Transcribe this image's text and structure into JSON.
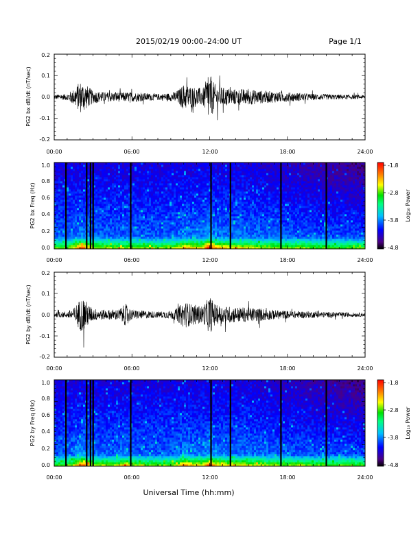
{
  "header": {
    "title": "2015/02/19  00:00–24:00 UT",
    "page": "Page 1/1"
  },
  "xlabel": "Universal Time (hh:mm)",
  "x_ticks": [
    "00:00",
    "06:00",
    "12:00",
    "18:00",
    "24:00"
  ],
  "colorbar": {
    "ticks": [
      "-1.8",
      "-2.8",
      "-3.8",
      "-4.8"
    ],
    "label": "Log₁₀ Power"
  },
  "chart_data": [
    {
      "type": "line",
      "title": "",
      "ylabel": "PG2 bx dB/dt (nT/sec)",
      "xlabel": "",
      "xlim": [
        0,
        24
      ],
      "ylim": [
        -0.2,
        0.2
      ],
      "y_ticks": [
        "0.2",
        "0.1",
        "0.0",
        "-0.1",
        "-0.2"
      ],
      "grid": false,
      "envelope": {
        "x_hours": [
          0,
          1,
          1.5,
          2,
          2.3,
          2.7,
          3,
          4,
          5,
          6,
          7,
          8,
          9,
          9.5,
          10,
          10.5,
          11,
          11.5,
          11.9,
          12.5,
          13,
          14,
          15,
          16,
          17,
          18,
          20,
          22,
          24
        ],
        "amplitude": [
          0.015,
          0.02,
          0.05,
          0.1,
          0.09,
          0.06,
          0.04,
          0.03,
          0.03,
          0.03,
          0.025,
          0.02,
          0.025,
          0.04,
          0.08,
          0.07,
          0.06,
          0.055,
          0.15,
          0.07,
          0.06,
          0.05,
          0.05,
          0.04,
          0.035,
          0.03,
          0.02,
          0.015,
          0.012
        ]
      }
    },
    {
      "type": "heatmap",
      "title": "",
      "ylabel": "PG2 bx Freq (Hz)",
      "xlabel": "",
      "xlim": [
        0,
        24
      ],
      "ylim": [
        0,
        1.0
      ],
      "y_ticks": [
        "1.0",
        "0.8",
        "0.6",
        "0.4",
        "0.2",
        "0.0"
      ],
      "zlim": [
        -4.8,
        -1.8
      ],
      "zlabel": "Log₁₀ Power",
      "colormap": "rainbow",
      "gap_lines_hours": [
        0.9,
        2.5,
        2.8,
        3.0,
        5.9,
        12.1,
        13.6,
        17.5,
        21.0
      ]
    },
    {
      "type": "line",
      "title": "",
      "ylabel": "PG2 by dB/dt (nT/sec)",
      "xlabel": "",
      "xlim": [
        0,
        24
      ],
      "ylim": [
        -0.2,
        0.2
      ],
      "y_ticks": [
        "0.2",
        "0.1",
        "0.0",
        "-0.1",
        "-0.2"
      ],
      "grid": false,
      "envelope": {
        "x_hours": [
          0,
          1,
          1.5,
          2,
          2.3,
          2.7,
          3,
          4,
          5,
          5.5,
          6,
          7,
          8,
          9,
          9.5,
          10,
          10.5,
          11,
          11.5,
          12,
          12.5,
          13,
          14,
          15,
          16,
          17,
          18,
          20,
          22,
          24
        ],
        "amplitude": [
          0.015,
          0.02,
          0.04,
          0.1,
          0.11,
          0.06,
          0.04,
          0.03,
          0.035,
          0.07,
          0.03,
          0.025,
          0.02,
          0.025,
          0.04,
          0.085,
          0.07,
          0.06,
          0.055,
          0.12,
          0.06,
          0.055,
          0.05,
          0.045,
          0.04,
          0.03,
          0.025,
          0.02,
          0.015,
          0.012
        ]
      }
    },
    {
      "type": "heatmap",
      "title": "",
      "ylabel": "PG2 by Freq (Hz)",
      "xlabel": "",
      "xlim": [
        0,
        24
      ],
      "ylim": [
        0,
        1.0
      ],
      "y_ticks": [
        "1.0",
        "0.8",
        "0.6",
        "0.4",
        "0.2",
        "0.0"
      ],
      "zlim": [
        -4.8,
        -1.8
      ],
      "zlabel": "Log₁₀ Power",
      "colormap": "rainbow",
      "gap_lines_hours": [
        0.9,
        2.5,
        2.8,
        3.0,
        5.9,
        12.1,
        13.6,
        17.5,
        21.0
      ]
    }
  ]
}
